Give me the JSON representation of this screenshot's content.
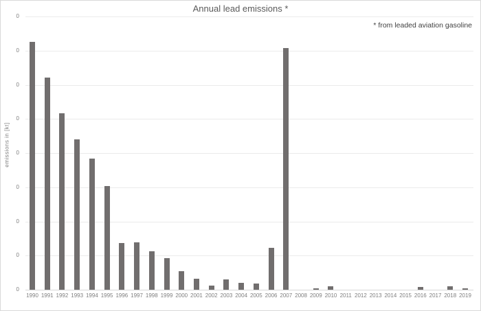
{
  "chart": {
    "title": "Annual lead emissions *",
    "footnote": "* from leaded aviation gasoline",
    "y_axis_title": "emissions in [kt]",
    "colors": {
      "bar": "#716e6e",
      "title_text": "#595959",
      "footnote_text": "#3f3f3f",
      "axis_text": "#7f7f7f",
      "gridline": "#ebebeb",
      "axis_line": "#d6d6d6",
      "canvas_border": "#d9d9d9"
    }
  },
  "chart_data": {
    "type": "bar",
    "title": "Annual lead emissions *",
    "annotation": "* from leaded aviation gasoline",
    "xlabel": "",
    "ylabel": "emissions in [kt]",
    "categories": [
      "1990",
      "1991",
      "1992",
      "1993",
      "1994",
      "1995",
      "1996",
      "1997",
      "1998",
      "1999",
      "2000",
      "2001",
      "2002",
      "2003",
      "2004",
      "2005",
      "2006",
      "2007",
      "2008",
      "2009",
      "2010",
      "2011",
      "2012",
      "2013",
      "2014",
      "2015",
      "2016",
      "2017",
      "2018",
      "2019"
    ],
    "values": [
      7.26,
      6.21,
      5.17,
      4.4,
      3.84,
      3.04,
      1.37,
      1.39,
      1.13,
      0.92,
      0.54,
      0.32,
      0.12,
      0.3,
      0.2,
      0.18,
      1.23,
      7.08,
      0,
      0.04,
      0.1,
      0,
      0,
      0,
      0,
      0,
      0.08,
      0,
      0.1,
      0.04
    ],
    "value_units": "gridline-units (all y tick labels display 0)",
    "ylim": [
      0,
      8
    ],
    "y_tick_labels": [
      "0",
      "0",
      "0",
      "0",
      "0",
      "0",
      "0",
      "0",
      "0"
    ],
    "grid": "horizontal gridlines on",
    "legend": "none"
  }
}
